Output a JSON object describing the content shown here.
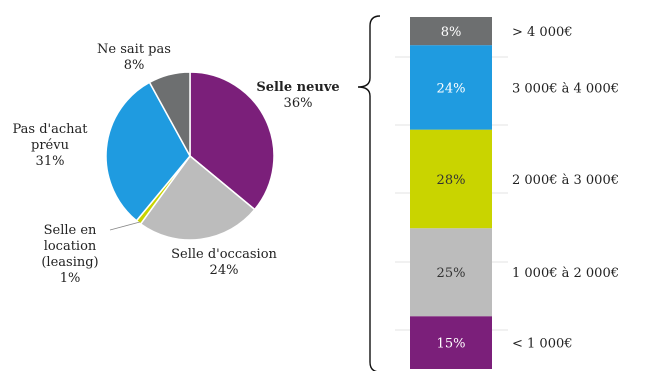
{
  "chart_data": [
    {
      "type": "pie",
      "slices": [
        {
          "label_lines": [
            "Selle neuve"
          ],
          "value": 36,
          "pct": "36%",
          "color": "#7b1f7a",
          "bold": true
        },
        {
          "label_lines": [
            "Selle d'occasion"
          ],
          "value": 24,
          "pct": "24%",
          "color": "#bcbcbc"
        },
        {
          "label_lines": [
            "Selle en",
            "location",
            "(leasing)"
          ],
          "value": 1,
          "pct": "1%",
          "color": "#c9d400"
        },
        {
          "label_lines": [
            "Pas d'achat",
            "prévu"
          ],
          "value": 31,
          "pct": "31%",
          "color": "#1f9be0"
        },
        {
          "label_lines": [
            "Ne sait pas"
          ],
          "value": 8,
          "pct": "8%",
          "color": "#6d6f70"
        }
      ]
    },
    {
      "type": "bar",
      "stacked": true,
      "breakdown_of": "Selle neuve",
      "segments": [
        {
          "label": "< 1 000€",
          "value": 15,
          "pct": "15%",
          "color": "#7b1f7a",
          "text_color": "#ffffff"
        },
        {
          "label": "1 000€ à 2 000€",
          "value": 25,
          "pct": "25%",
          "color": "#bcbcbc",
          "text_color": "#333333"
        },
        {
          "label": "2 000€ à 3 000€",
          "value": 28,
          "pct": "28%",
          "color": "#c9d400",
          "text_color": "#333333"
        },
        {
          "label": "3 000€ à 4 000€",
          "value": 24,
          "pct": "24%",
          "color": "#1f9be0",
          "text_color": "#ffffff"
        },
        {
          "label": "> 4 000€",
          "value": 8,
          "pct": "8%",
          "color": "#6d6f70",
          "text_color": "#ffffff"
        }
      ]
    }
  ]
}
